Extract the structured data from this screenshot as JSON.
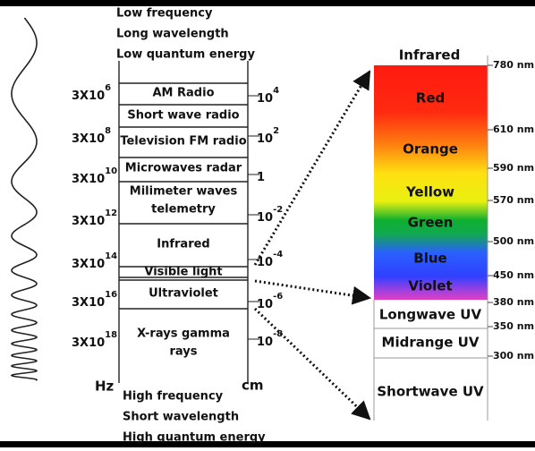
{
  "header": {
    "lines": [
      "Low frequency",
      "Long wavelength",
      "Low quantum energy"
    ]
  },
  "footer": {
    "lines": [
      "High frequency",
      "Short wavelength",
      "High quantum energy"
    ]
  },
  "frequency_axis": {
    "unit": "Hz",
    "labels": [
      {
        "base": "3X10",
        "exp": "6"
      },
      {
        "base": "3X10",
        "exp": "8"
      },
      {
        "base": "3X10",
        "exp": "10"
      },
      {
        "base": "3X10",
        "exp": "12"
      },
      {
        "base": "3X10",
        "exp": "14"
      },
      {
        "base": "3X10",
        "exp": "16"
      },
      {
        "base": "3X10",
        "exp": "18"
      }
    ]
  },
  "wavelength_axis": {
    "unit": "cm",
    "labels": [
      {
        "base": "10",
        "exp": "4"
      },
      {
        "base": "10",
        "exp": "2"
      },
      {
        "base": "1"
      },
      {
        "base": "10",
        "exp": "-2"
      },
      {
        "base": "10",
        "exp": "-4"
      },
      {
        "base": "10",
        "exp": "-6"
      },
      {
        "base": "10",
        "exp": "-8"
      }
    ]
  },
  "bands": [
    [
      "AM Radio"
    ],
    [
      "Short wave radio"
    ],
    [
      "Television FM radio"
    ],
    [
      "Microwaves radar"
    ],
    [
      "Milimeter waves",
      "telemetry"
    ],
    [
      "Infrared"
    ],
    [
      "Visible light"
    ],
    [
      "Ultraviolet"
    ],
    [
      "X-rays gamma",
      "rays"
    ]
  ],
  "spectrum": {
    "top": "Infrared",
    "colors": [
      "Red",
      "Orange",
      "Yellow",
      "Green",
      "Blue",
      "Violet"
    ],
    "uv": [
      "Longwave UV",
      "Midrange UV",
      "Shortwave UV"
    ],
    "nm": [
      "780 nm",
      "610 nm",
      "590 nm",
      "570 nm",
      "500 nm",
      "450 nm",
      "380 nm",
      "350 nm",
      "300 nm"
    ]
  }
}
